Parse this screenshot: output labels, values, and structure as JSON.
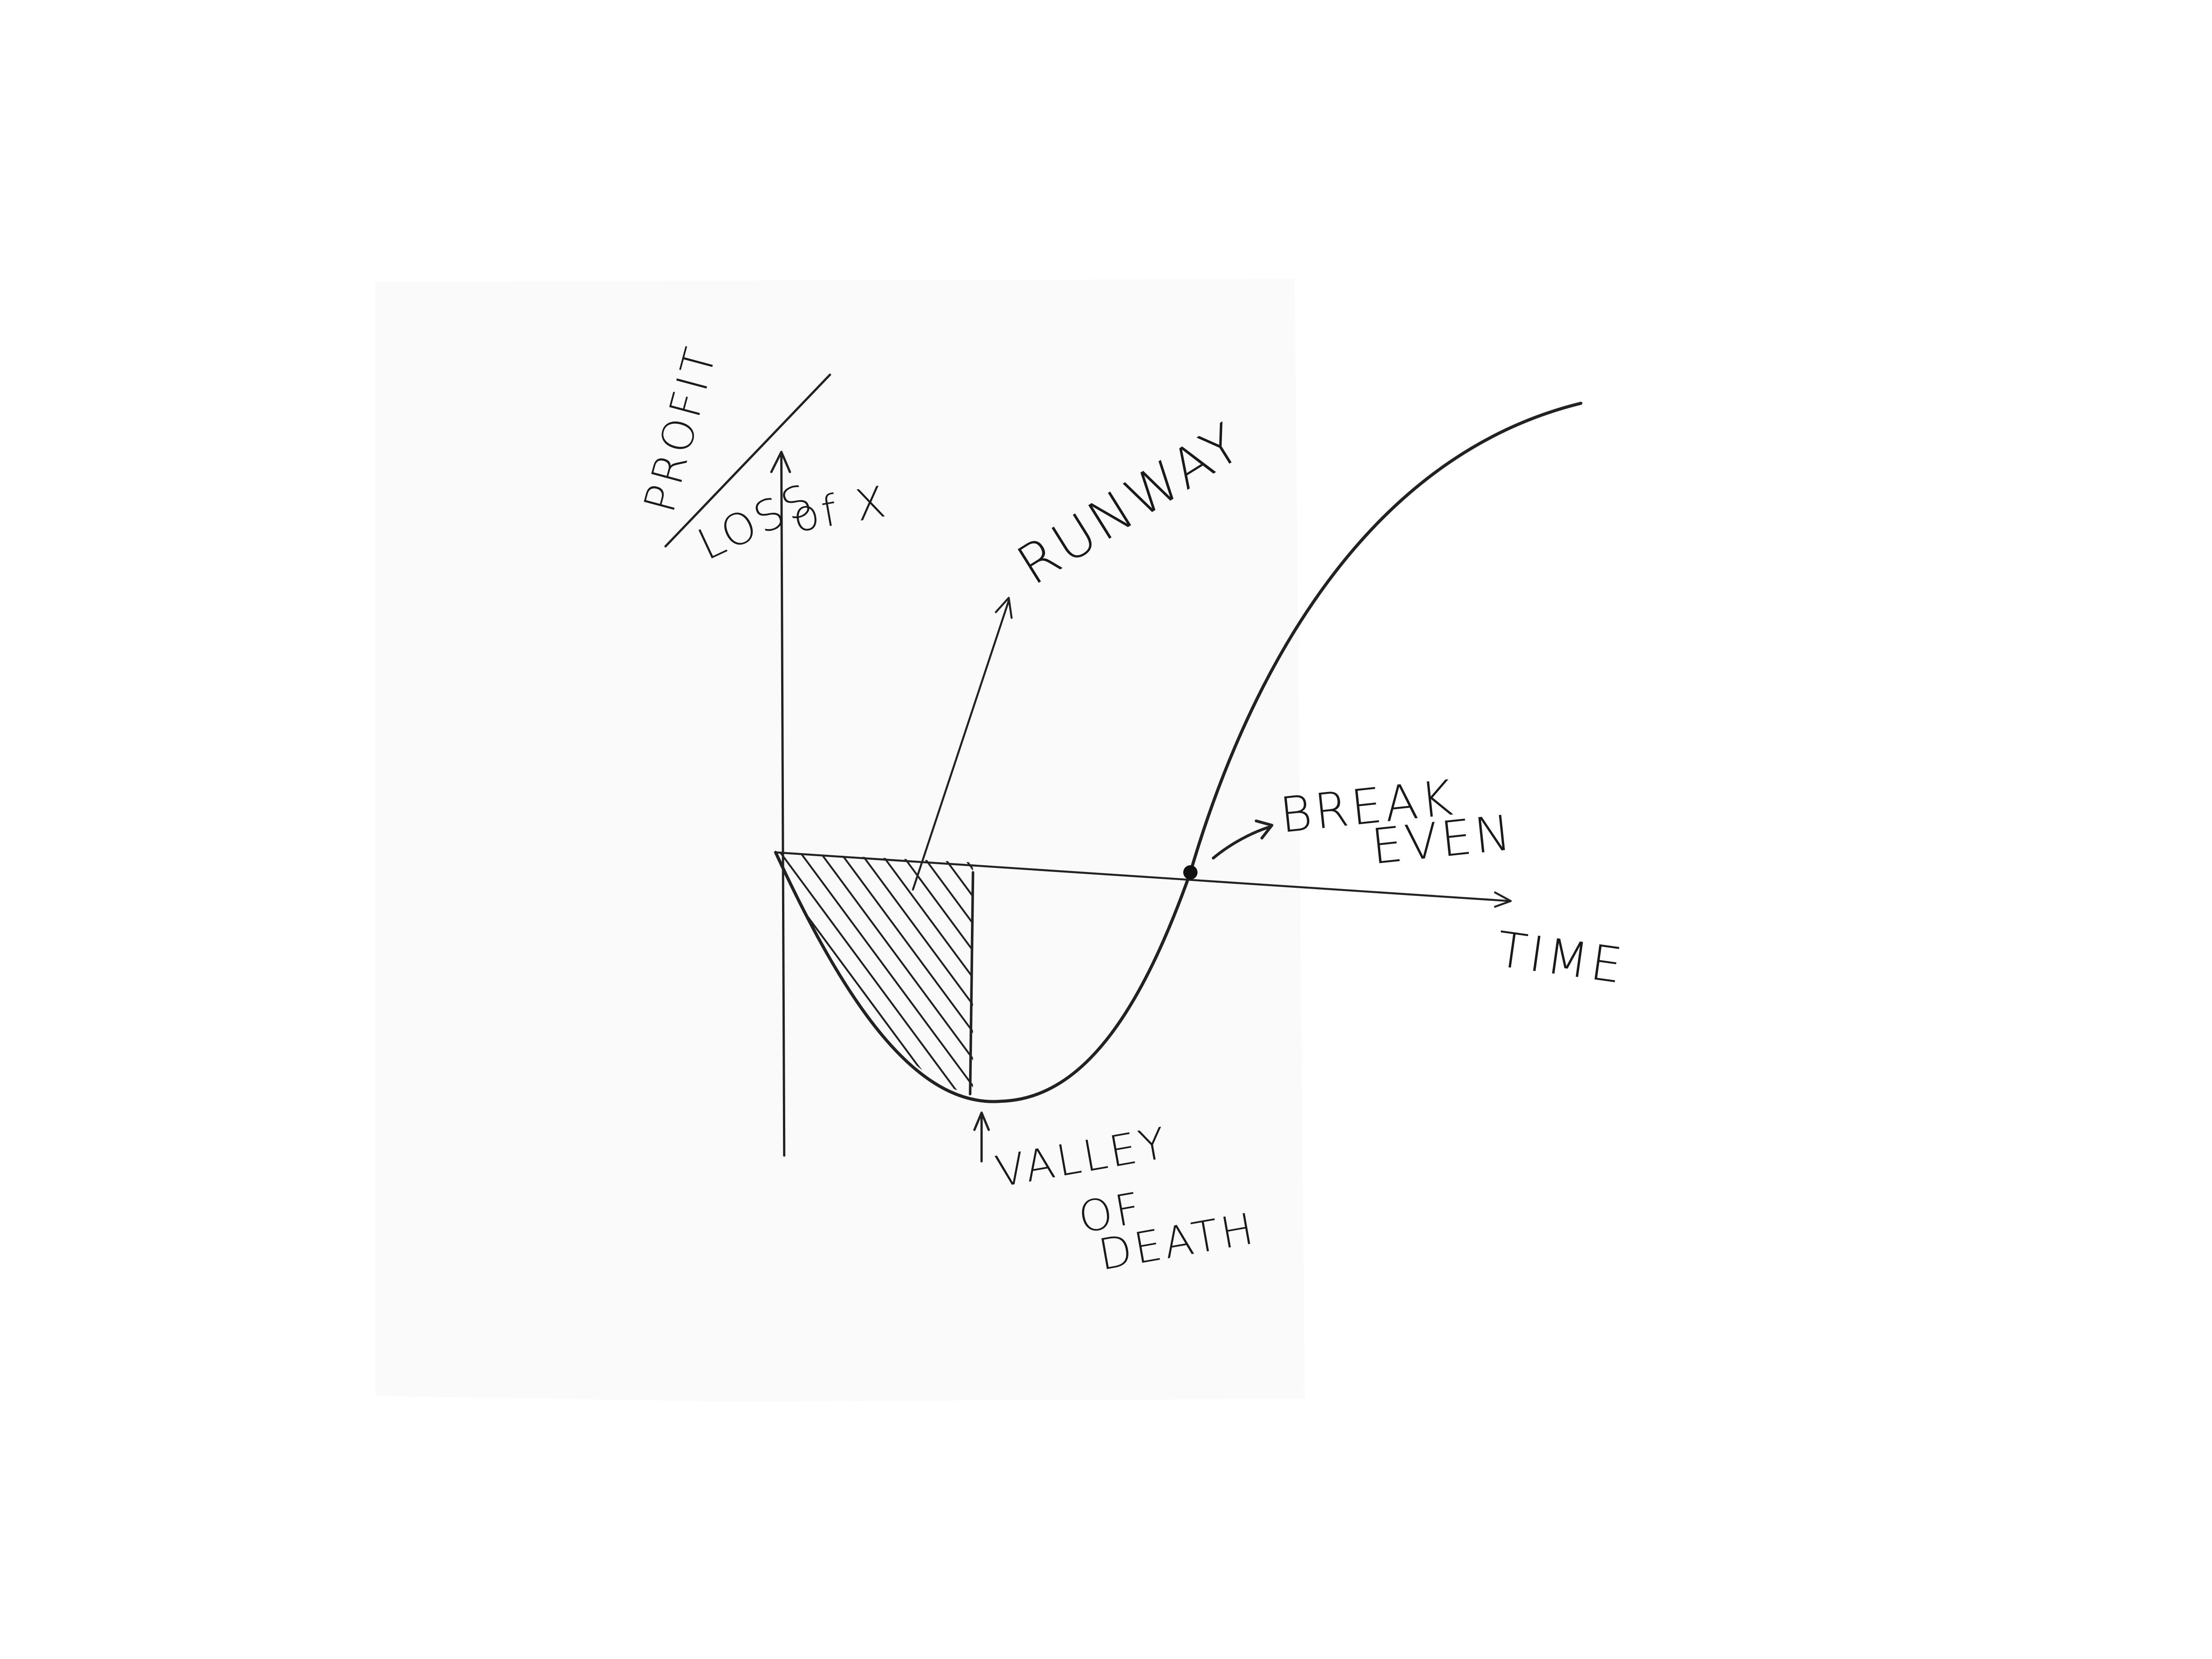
{
  "labels": {
    "y_axis_top": "PROFIT",
    "y_axis_bottom": "LOSS",
    "y_axis_suffix": "of X",
    "runway": "RUNWAY",
    "break_even": [
      "BREAK",
      "EVEN"
    ],
    "x_axis": "TIME",
    "valley": [
      "VALLEY",
      "OF",
      "DEATH"
    ]
  }
}
